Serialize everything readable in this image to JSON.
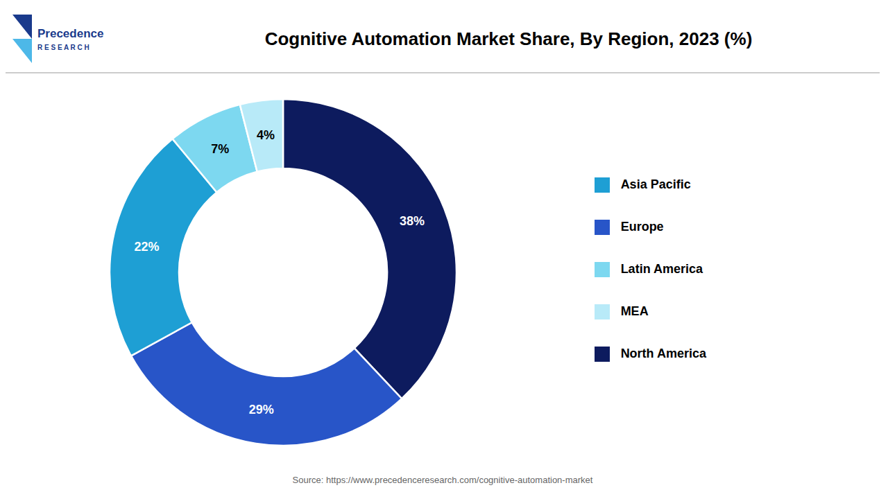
{
  "chart_data": {
    "type": "pie",
    "title": "Cognitive Automation Market Share, By Region, 2023 (%)",
    "categories": [
      "North America",
      "Europe",
      "Asia Pacific",
      "Latin America",
      "MEA"
    ],
    "values": [
      38,
      29,
      22,
      7,
      4
    ],
    "value_labels": [
      "38%",
      "29%",
      "22%",
      "7%",
      "4%"
    ],
    "colors": [
      "#0d1b5e",
      "#2855c8",
      "#1e9fd4",
      "#7dd8f0",
      "#b8eaf8"
    ],
    "data_labels": true,
    "legend": "right",
    "annotations": [
      "Precedence",
      "R E S E A R C H",
      "Source: https://www.precedenceresearch.com/cognitive-automation-market"
    ]
  }
}
